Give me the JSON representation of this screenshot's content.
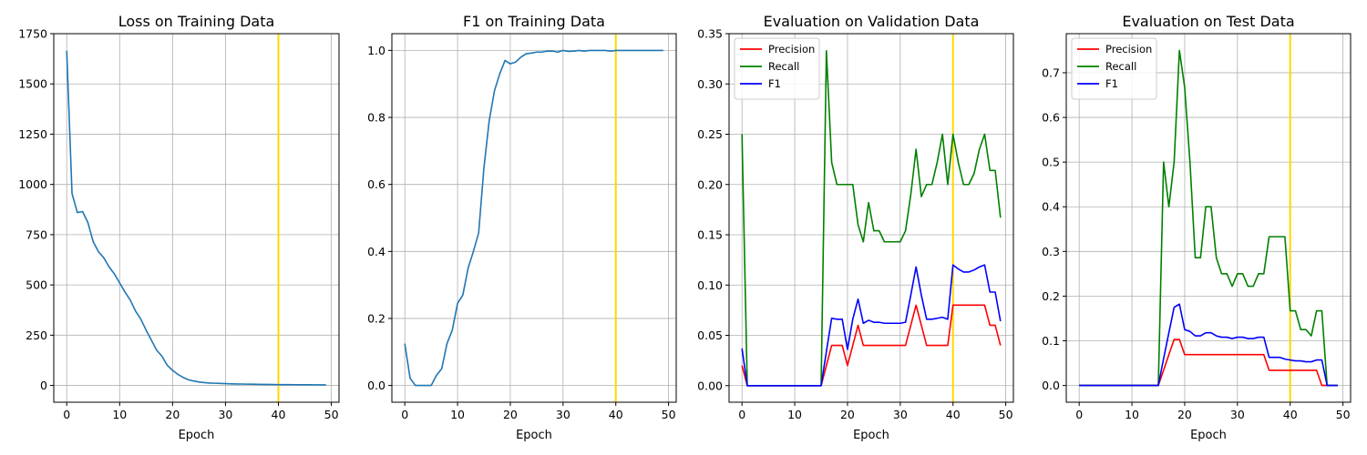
{
  "marker_color": "#FFD700",
  "chart_data": [
    {
      "type": "line",
      "title": "Loss on Training Data",
      "xlabel": "Epoch",
      "ylabel": "",
      "xlim": [
        -2.45,
        51.45
      ],
      "ylim": [
        -83.5,
        1750
      ],
      "xticks": [
        0,
        10,
        20,
        30,
        40,
        50
      ],
      "yticks": [
        0,
        250,
        500,
        750,
        1000,
        1250,
        1500,
        1750
      ],
      "ytick_labels": [
        "0",
        "250",
        "500",
        "750",
        "1000",
        "1250",
        "1500",
        "1750"
      ],
      "grid": true,
      "vline_x": 40,
      "legend": null,
      "series": [
        {
          "name": "",
          "color": "#1f77b4",
          "values": [
            1665,
            955,
            860,
            865,
            810,
            715,
            665,
            635,
            590,
            555,
            510,
            465,
            425,
            370,
            330,
            275,
            225,
            175,
            145,
            100,
            75,
            55,
            40,
            28,
            22,
            17,
            14,
            12,
            11,
            10,
            9,
            8,
            7.5,
            7,
            6.5,
            6,
            5.5,
            5,
            5,
            4.5,
            4,
            4,
            3.8,
            3.6,
            3.4,
            3.3,
            3.2,
            3.1,
            3,
            3
          ]
        }
      ]
    },
    {
      "type": "line",
      "title": "F1 on Training Data",
      "xlabel": "Epoch",
      "ylabel": "",
      "xlim": [
        -2.45,
        51.45
      ],
      "ylim": [
        -0.05,
        1.05
      ],
      "xticks": [
        0,
        10,
        20,
        30,
        40,
        50
      ],
      "yticks": [
        0,
        0.2,
        0.4,
        0.6,
        0.8,
        1.0
      ],
      "ytick_labels": [
        "0.0",
        "0.2",
        "0.4",
        "0.6",
        "0.8",
        "1.0"
      ],
      "grid": true,
      "vline_x": 40,
      "legend": null,
      "series": [
        {
          "name": "",
          "color": "#1f77b4",
          "values": [
            0.125,
            0.022,
            0,
            0,
            0,
            0,
            0.03,
            0.05,
            0.125,
            0.165,
            0.245,
            0.27,
            0.35,
            0.4,
            0.455,
            0.65,
            0.79,
            0.88,
            0.93,
            0.97,
            0.96,
            0.965,
            0.98,
            0.99,
            0.992,
            0.995,
            0.995,
            0.998,
            0.998,
            0.995,
            1.0,
            0.997,
            0.998,
            1.0,
            0.998,
            1.0,
            1.0,
            1.0,
            1.0,
            0.998,
            1.0,
            1.0,
            1.0,
            1.0,
            1.0,
            1.0,
            1.0,
            1.0,
            1.0,
            1.0
          ]
        }
      ]
    },
    {
      "type": "line",
      "title": "Evaluation on Validation Data",
      "xlabel": "Epoch",
      "ylabel": "",
      "xlim": [
        -2.45,
        51.45
      ],
      "ylim": [
        -0.0165,
        0.35
      ],
      "xticks": [
        0,
        10,
        20,
        30,
        40,
        50
      ],
      "yticks": [
        0,
        0.05,
        0.1,
        0.15,
        0.2,
        0.25,
        0.3,
        0.35
      ],
      "ytick_labels": [
        "0.00",
        "0.05",
        "0.10",
        "0.15",
        "0.20",
        "0.25",
        "0.30",
        "0.35"
      ],
      "grid": true,
      "vline_x": 40,
      "legend": "top-left",
      "series": [
        {
          "name": "Precision",
          "color": "#ff0000",
          "values": [
            0.02,
            0,
            0,
            0,
            0,
            0,
            0,
            0,
            0,
            0,
            0,
            0,
            0,
            0,
            0,
            0,
            0.02,
            0.04,
            0.04,
            0.04,
            0.02,
            0.04,
            0.06,
            0.04,
            0.04,
            0.04,
            0.04,
            0.04,
            0.04,
            0.04,
            0.04,
            0.04,
            0.06,
            0.08,
            0.06,
            0.04,
            0.04,
            0.04,
            0.04,
            0.04,
            0.08,
            0.08,
            0.08,
            0.08,
            0.08,
            0.08,
            0.08,
            0.06,
            0.06,
            0.04
          ]
        },
        {
          "name": "Recall",
          "color": "#008000",
          "values": [
            0.25,
            0,
            0,
            0,
            0,
            0,
            0,
            0,
            0,
            0,
            0,
            0,
            0,
            0,
            0,
            0,
            0.333,
            0.222,
            0.2,
            0.2,
            0.2,
            0.2,
            0.16,
            0.143,
            0.182,
            0.154,
            0.154,
            0.143,
            0.143,
            0.143,
            0.143,
            0.154,
            0.19,
            0.235,
            0.188,
            0.2,
            0.2,
            0.222,
            0.25,
            0.2,
            0.25,
            0.222,
            0.2,
            0.2,
            0.211,
            0.235,
            0.25,
            0.214,
            0.214,
            0.167
          ]
        },
        {
          "name": "F1",
          "color": "#0000ff",
          "values": [
            0.037,
            0,
            0,
            0,
            0,
            0,
            0,
            0,
            0,
            0,
            0,
            0,
            0,
            0,
            0,
            0,
            0.034,
            0.067,
            0.066,
            0.066,
            0.036,
            0.066,
            0.086,
            0.062,
            0.065,
            0.063,
            0.063,
            0.062,
            0.062,
            0.062,
            0.062,
            0.063,
            0.09,
            0.118,
            0.09,
            0.066,
            0.066,
            0.067,
            0.068,
            0.066,
            0.12,
            0.116,
            0.113,
            0.113,
            0.115,
            0.118,
            0.12,
            0.093,
            0.093,
            0.064
          ]
        }
      ]
    },
    {
      "type": "line",
      "title": "Evaluation on Test Data",
      "xlabel": "Epoch",
      "ylabel": "",
      "xlim": [
        -2.45,
        51.45
      ],
      "ylim": [
        -0.0375,
        0.7875
      ],
      "xticks": [
        0,
        10,
        20,
        30,
        40,
        50
      ],
      "yticks": [
        0,
        0.1,
        0.2,
        0.3,
        0.4,
        0.5,
        0.6,
        0.7
      ],
      "ytick_labels": [
        "0.0",
        "0.1",
        "0.2",
        "0.3",
        "0.4",
        "0.5",
        "0.6",
        "0.7"
      ],
      "grid": true,
      "vline_x": 40,
      "legend": "top-left",
      "series": [
        {
          "name": "Precision",
          "color": "#ff0000",
          "values": [
            0,
            0,
            0,
            0,
            0,
            0,
            0,
            0,
            0,
            0,
            0,
            0,
            0,
            0,
            0,
            0,
            0.034,
            0.069,
            0.103,
            0.103,
            0.069,
            0.069,
            0.069,
            0.069,
            0.069,
            0.069,
            0.069,
            0.069,
            0.069,
            0.069,
            0.069,
            0.069,
            0.069,
            0.069,
            0.069,
            0.069,
            0.034,
            0.034,
            0.034,
            0.034,
            0.034,
            0.034,
            0.034,
            0.034,
            0.034,
            0.034,
            0,
            0,
            0,
            0
          ]
        },
        {
          "name": "Recall",
          "color": "#008000",
          "values": [
            0,
            0,
            0,
            0,
            0,
            0,
            0,
            0,
            0,
            0,
            0,
            0,
            0,
            0,
            0,
            0,
            0.5,
            0.4,
            0.5,
            0.75,
            0.667,
            0.5,
            0.286,
            0.286,
            0.4,
            0.4,
            0.286,
            0.25,
            0.25,
            0.222,
            0.25,
            0.25,
            0.222,
            0.222,
            0.25,
            0.25,
            0.333,
            0.333,
            0.333,
            0.333,
            0.167,
            0.167,
            0.125,
            0.125,
            0.111,
            0.167,
            0.167,
            0,
            0,
            0
          ]
        },
        {
          "name": "F1",
          "color": "#0000ff",
          "values": [
            0,
            0,
            0,
            0,
            0,
            0,
            0,
            0,
            0,
            0,
            0,
            0,
            0,
            0,
            0,
            0,
            0.06,
            0.118,
            0.175,
            0.182,
            0.125,
            0.121,
            0.111,
            0.111,
            0.118,
            0.118,
            0.111,
            0.108,
            0.108,
            0.105,
            0.108,
            0.108,
            0.105,
            0.105,
            0.108,
            0.108,
            0.063,
            0.063,
            0.063,
            0.059,
            0.057,
            0.055,
            0.055,
            0.053,
            0.053,
            0.057,
            0.057,
            0,
            0,
            0
          ]
        }
      ]
    }
  ]
}
